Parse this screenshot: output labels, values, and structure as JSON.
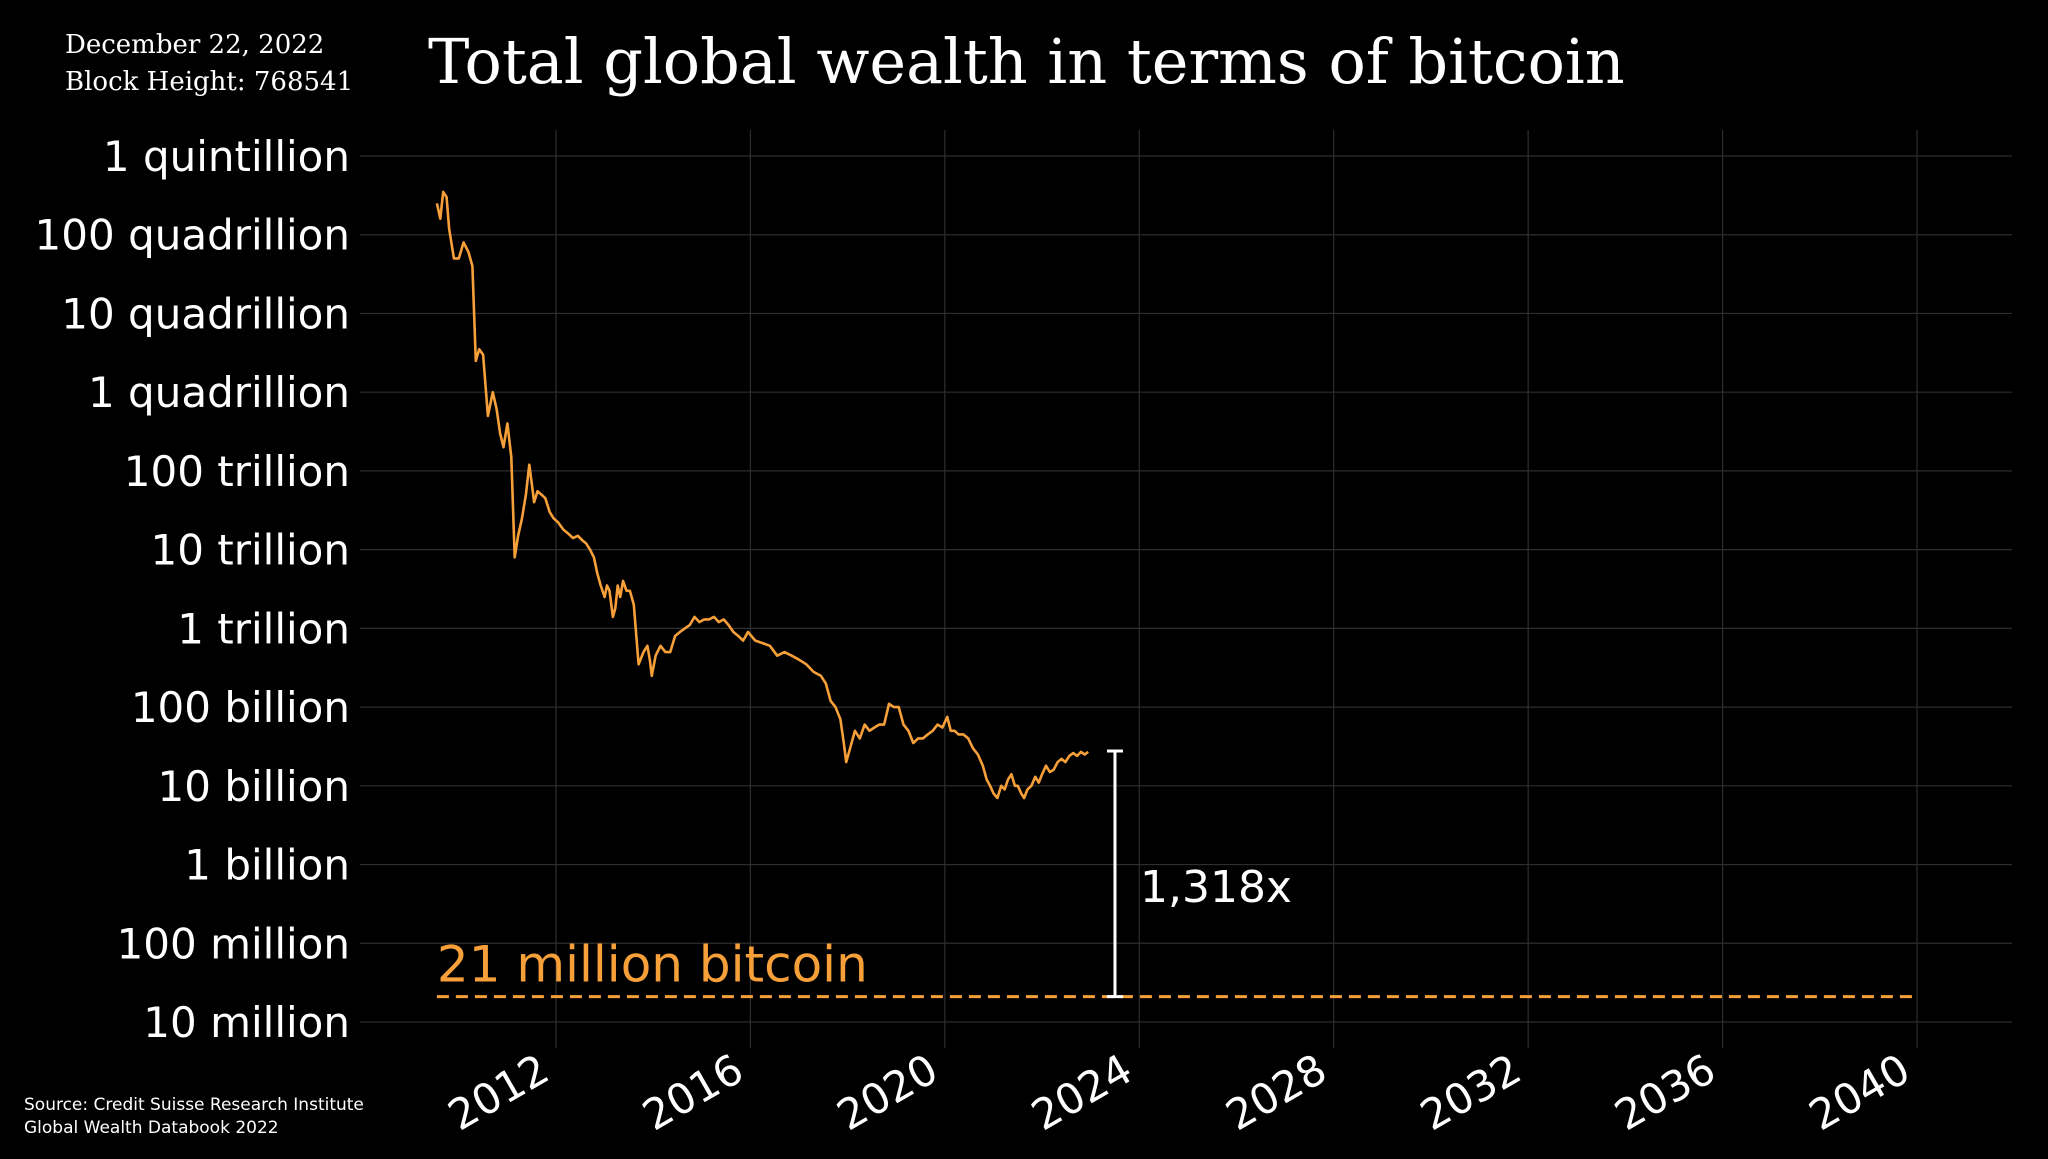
{
  "header": {
    "date": "December 22, 2022",
    "block_height": "Block Height: 768541"
  },
  "footer": {
    "source_line1": "Source: Credit Suisse Research Institute",
    "source_line2": "Global Wealth Databook 2022"
  },
  "colors": {
    "background": "#000000",
    "series": "#f7a03a",
    "text": "#ffffff",
    "grid": "#2e2e2e"
  },
  "chart_data": {
    "type": "line",
    "title": "Total global wealth in terms of bitcoin",
    "xlabel": "",
    "ylabel": "",
    "y_scale": "log",
    "grid": true,
    "xlim": [
      2009.0,
      2041.0
    ],
    "ylim": [
      6000000.0,
      1.6e+18
    ],
    "x_ticks": [
      2012,
      2016,
      2020,
      2024,
      2028,
      2032,
      2036,
      2040
    ],
    "x_tick_labels": [
      "2012",
      "2016",
      "2020",
      "2024",
      "2028",
      "2032",
      "2036",
      "2040"
    ],
    "y_ticks": [
      10000000.0,
      100000000.0,
      1000000000.0,
      10000000000.0,
      100000000000.0,
      1000000000000.0,
      10000000000000.0,
      100000000000000.0,
      1000000000000000.0,
      1e+16,
      1e+17,
      1e+18
    ],
    "y_tick_labels": [
      "10 million",
      "100 million",
      "1 billion",
      "10 billion",
      "100 billion",
      "1 trillion",
      "10 trillion",
      "100 trillion",
      "1 quadrillion",
      "10 quadrillion",
      "100 quadrillion",
      "1 quintillion"
    ],
    "series": [
      {
        "x": [
          2009.55,
          2009.62,
          2009.68,
          2009.75,
          2009.8,
          2009.9,
          2010.0,
          2010.1,
          2010.2,
          2010.28,
          2010.35,
          2010.42,
          2010.5,
          2010.6,
          2010.7,
          2010.78,
          2010.85,
          2010.92,
          2011.0,
          2011.08,
          2011.15,
          2011.22,
          2011.3,
          2011.38,
          2011.45,
          2011.5,
          2011.55,
          2011.62,
          2011.7,
          2011.78,
          2011.87,
          2011.95,
          2012.05,
          2012.15,
          2012.25,
          2012.35,
          2012.45,
          2012.55,
          2012.62,
          2012.7,
          2012.78,
          2012.85,
          2012.92,
          2013.0,
          2013.05,
          2013.1,
          2013.17,
          2013.22,
          2013.27,
          2013.32,
          2013.38,
          2013.45,
          2013.52,
          2013.6,
          2013.7,
          2013.8,
          2013.88,
          2013.93,
          2013.97,
          2014.05,
          2014.15,
          2014.25,
          2014.35,
          2014.45,
          2014.55,
          2014.65,
          2014.75,
          2014.85,
          2014.95,
          2015.05,
          2015.15,
          2015.25,
          2015.35,
          2015.45,
          2015.55,
          2015.65,
          2015.75,
          2015.85,
          2015.95,
          2016.1,
          2016.25,
          2016.4,
          2016.55,
          2016.7,
          2016.85,
          2017.0,
          2017.15,
          2017.3,
          2017.45,
          2017.55,
          2017.65,
          2017.75,
          2017.85,
          2017.92,
          2017.97,
          2018.05,
          2018.15,
          2018.25,
          2018.35,
          2018.45,
          2018.55,
          2018.65,
          2018.75,
          2018.85,
          2018.95,
          2019.05,
          2019.15,
          2019.25,
          2019.35,
          2019.45,
          2019.55,
          2019.65,
          2019.75,
          2019.85,
          2019.95,
          2020.05,
          2020.12,
          2020.2,
          2020.28,
          2020.38,
          2020.48,
          2020.58,
          2020.68,
          2020.78,
          2020.86,
          2020.93,
          2021.0,
          2021.08,
          2021.16,
          2021.23,
          2021.3,
          2021.37,
          2021.44,
          2021.5,
          2021.57,
          2021.63,
          2021.7,
          2021.78,
          2021.86,
          2021.93,
          2022.0,
          2022.08,
          2022.16,
          2022.24,
          2022.32,
          2022.4,
          2022.48,
          2022.56,
          2022.64,
          2022.72,
          2022.8,
          2022.88,
          2022.95
        ],
        "y": [
          2.5e+17,
          1.6e+17,
          3.5e+17,
          3e+17,
          1.2e+17,
          5e+16,
          5e+16,
          8e+16,
          6e+16,
          4e+16,
          2500000000000000.0,
          3500000000000000.0,
          3000000000000000.0,
          500000000000000.0,
          1000000000000000.0,
          600000000000000.0,
          300000000000000.0,
          200000000000000.0,
          400000000000000.0,
          150000000000000.0,
          8000000000000.0,
          15000000000000.0,
          25000000000000.0,
          50000000000000.0,
          120000000000000.0,
          70000000000000.0,
          40000000000000.0,
          55000000000000.0,
          50000000000000.0,
          45000000000000.0,
          30000000000000.0,
          25000000000000.0,
          22000000000000.0,
          18000000000000.0,
          16000000000000.0,
          14000000000000.0,
          15000000000000.0,
          13000000000000.0,
          12000000000000.0,
          10000000000000.0,
          8000000000000.0,
          5000000000000.0,
          3500000000000.0,
          2500000000000.0,
          3500000000000.0,
          3000000000000.0,
          1400000000000.0,
          1800000000000.0,
          3500000000000.0,
          2500000000000.0,
          4000000000000.0,
          3000000000000.0,
          3000000000000.0,
          2000000000000.0,
          350000000000.0,
          500000000000.0,
          600000000000.0,
          400000000000.0,
          250000000000.0,
          450000000000.0,
          600000000000.0,
          500000000000.0,
          500000000000.0,
          800000000000.0,
          900000000000.0,
          1000000000000.0,
          1100000000000.0,
          1400000000000.0,
          1200000000000.0,
          1300000000000.0,
          1300000000000.0,
          1400000000000.0,
          1200000000000.0,
          1300000000000.0,
          1100000000000.0,
          900000000000.0,
          800000000000.0,
          700000000000.0,
          900000000000.0,
          700000000000.0,
          650000000000.0,
          600000000000.0,
          450000000000.0,
          500000000000.0,
          450000000000.0,
          400000000000.0,
          350000000000.0,
          280000000000.0,
          250000000000.0,
          200000000000.0,
          120000000000.0,
          100000000000.0,
          70000000000.0,
          35000000000.0,
          20000000000.0,
          30000000000.0,
          50000000000.0,
          40000000000.0,
          60000000000.0,
          50000000000.0,
          55000000000.0,
          60000000000.0,
          60000000000.0,
          110000000000.0,
          100000000000.0,
          100000000000.0,
          60000000000.0,
          50000000000.0,
          35000000000.0,
          40000000000.0,
          40000000000.0,
          45000000000.0,
          50000000000.0,
          60000000000.0,
          55000000000.0,
          75000000000.0,
          50000000000.0,
          50000000000.0,
          45000000000.0,
          45000000000.0,
          40000000000.0,
          30000000000.0,
          25000000000.0,
          18000000000.0,
          12000000000.0,
          10000000000.0,
          8000000000.0,
          7000000000.0,
          10000000000.0,
          9000000000.0,
          12000000000.0,
          14000000000.0,
          10000000000.0,
          10000000000.0,
          8000000000.0,
          7000000000.0,
          9000000000.0,
          10000000000.0,
          13000000000.0,
          11000000000.0,
          14000000000.0,
          18000000000.0,
          15000000000.0,
          16000000000.0,
          20000000000.0,
          22000000000.0,
          20000000000.0,
          24000000000.0,
          26000000000.0,
          24000000000.0,
          27000000000.0,
          25000000000.0,
          27000000000.0
        ],
        "color": "#f7a03a"
      }
    ],
    "reference_line": {
      "label": "21 million bitcoin",
      "y": 21000000.0,
      "x_range": [
        2009.55,
        2040.0
      ],
      "style": "dashed",
      "color": "#f7a03a"
    },
    "annotation": {
      "label": "1,318x",
      "x": 2023.5,
      "y_from": 21000000.0,
      "y_to": 27700000000.0,
      "color": "#ffffff"
    }
  }
}
